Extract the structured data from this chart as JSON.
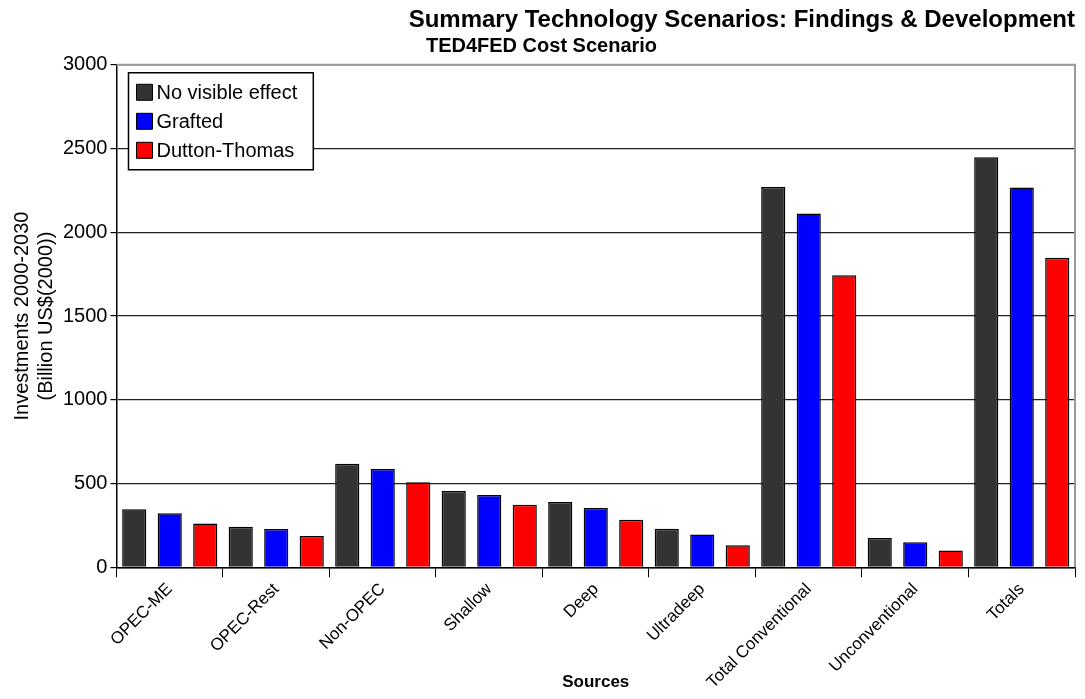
{
  "chart_data": {
    "type": "bar",
    "title": "Summary Technology Scenarios: Findings & Development",
    "subtitle": "TED4FED Cost Scenario",
    "xlabel": "Sources",
    "ylabel": "Investments 2000-2030\n(Billion US$(2000))",
    "categories": [
      "OPEC-ME",
      "OPEC-Rest",
      "Non-OPEC",
      "Shallow",
      "Deep",
      "Ultradeep",
      "Total Conventional",
      "Unconventional",
      "Totals"
    ],
    "series": [
      {
        "name": "No visible effect",
        "color": "#333333",
        "values": [
          347,
          242,
          618,
          456,
          390,
          230,
          2270,
          175,
          2448
        ]
      },
      {
        "name": "Grafted",
        "color": "#0000ff",
        "values": [
          322,
          228,
          586,
          431,
          354,
          195,
          2112,
          150,
          2267
        ]
      },
      {
        "name": "Dutton-Thomas",
        "color": "#ff0000",
        "values": [
          262,
          187,
          507,
          374,
          283,
          132,
          1744,
          100,
          1848
        ]
      }
    ],
    "ylim": [
      0,
      3000
    ],
    "yticks": [
      0,
      500,
      1000,
      1500,
      2000,
      2500,
      3000
    ],
    "grid": "y",
    "legend": "top left"
  }
}
